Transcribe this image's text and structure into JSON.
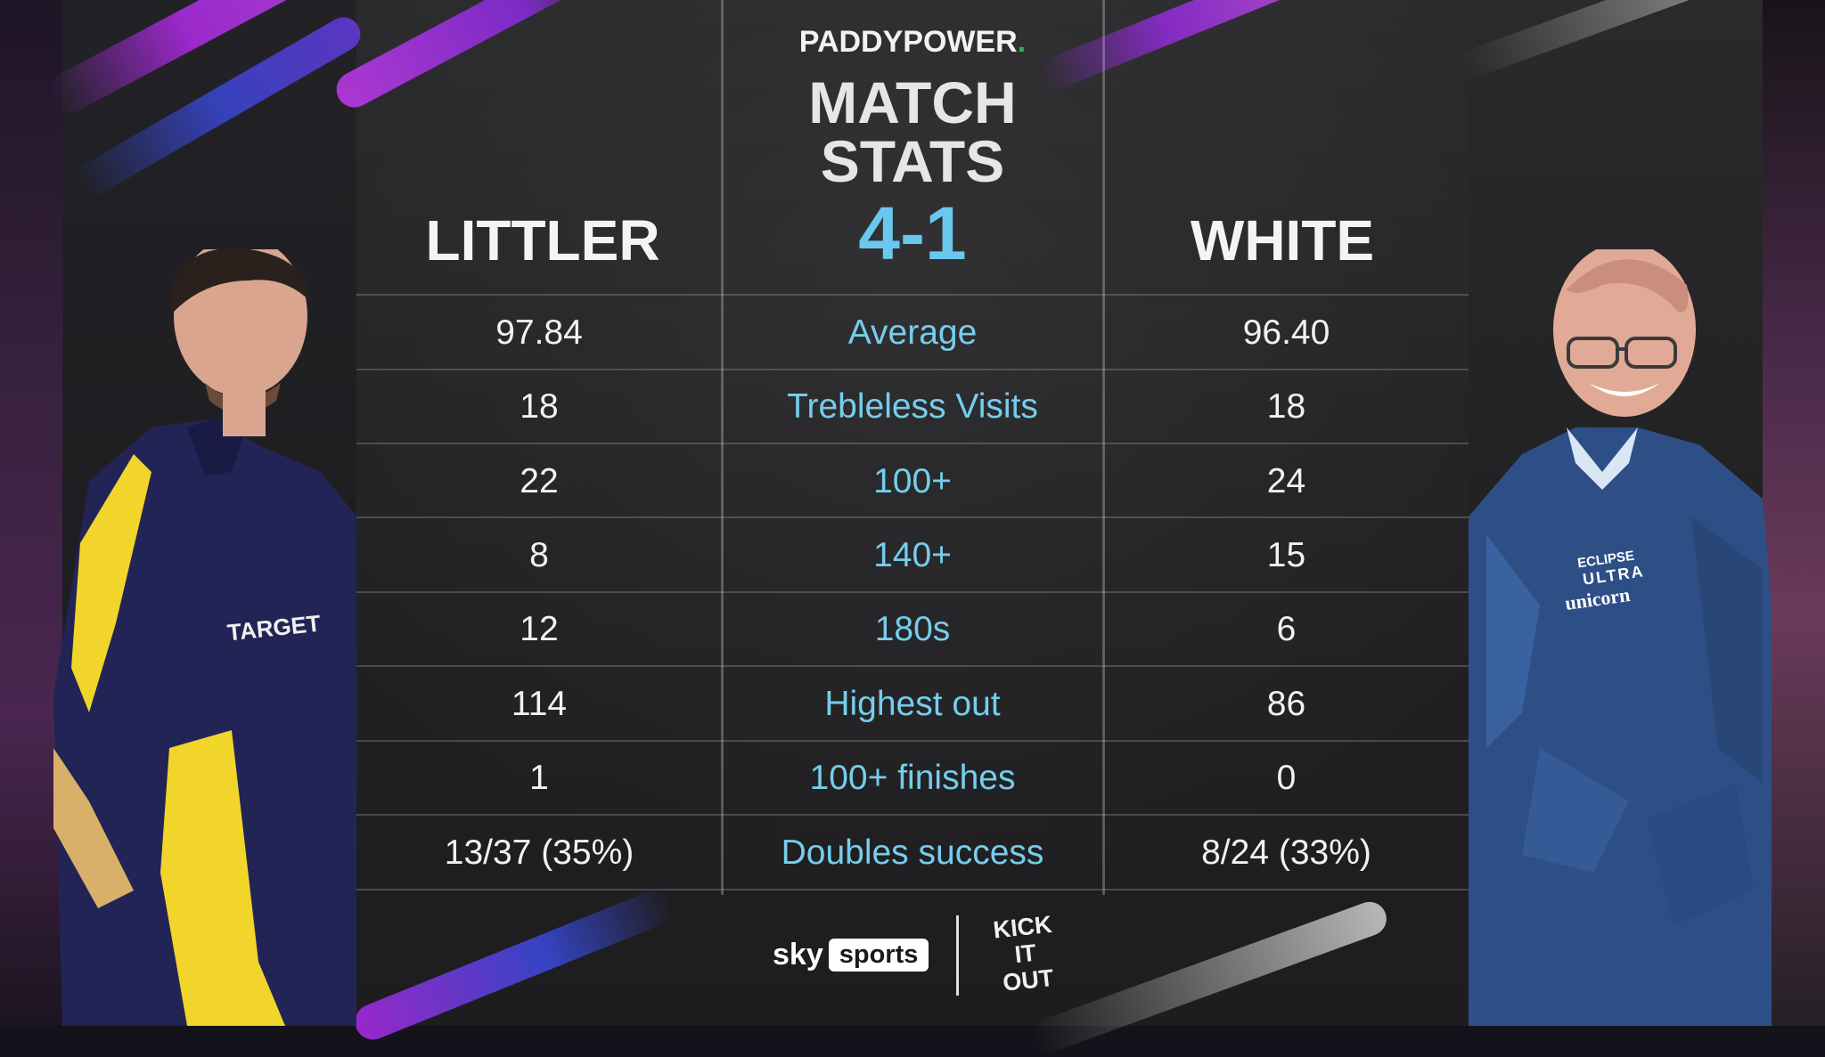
{
  "brand": {
    "name": "PADDYPOWER",
    "dot": "."
  },
  "header": {
    "title_line1": "MATCH",
    "title_line2": "STATS",
    "score": "4-1"
  },
  "players": {
    "left": {
      "name": "LITTLER",
      "shirt_text": "TARGET"
    },
    "right": {
      "name": "WHITE",
      "shirt_text_1": "ECLIPSE",
      "shirt_text_2": "ULTRA",
      "shirt_text_3": "unicorn"
    }
  },
  "stats": [
    {
      "left": "97.84",
      "label": "Average",
      "right": "96.40"
    },
    {
      "left": "18",
      "label": "Trebleless Visits",
      "right": "18"
    },
    {
      "left": "22",
      "label": "100+",
      "right": "24"
    },
    {
      "left": "8",
      "label": "140+",
      "right": "15"
    },
    {
      "left": "12",
      "label": "180s",
      "right": "6"
    },
    {
      "left": "114",
      "label": "Highest out",
      "right": "86"
    },
    {
      "left": "1",
      "label": "100+ finishes",
      "right": "0"
    },
    {
      "left": "13/37 (35%)",
      "label": "Doubles success",
      "right": "8/24 (33%)"
    }
  ],
  "footer": {
    "sky_word": "sky",
    "sky_pill": "sports",
    "kio_1": "KICK",
    "kio_2": "IT",
    "kio_3": "OUT"
  },
  "colors": {
    "accent_blue": "#6ac7ee",
    "label_blue": "#76cdec",
    "paddy_green": "#2fae5a",
    "streak_purple": "#b02ae8",
    "streak_blue": "#2a3fd0"
  },
  "icons": {
    "left_photo": "player-photo",
    "right_photo": "player-photo"
  }
}
